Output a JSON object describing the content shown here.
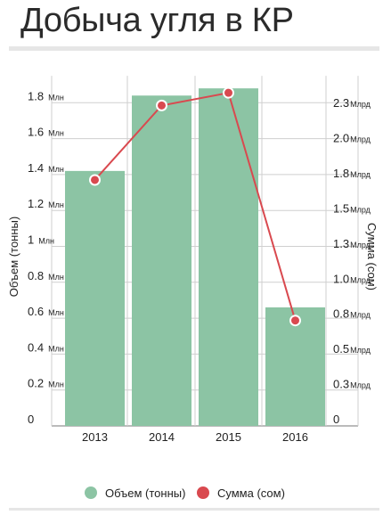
{
  "title": "Добыча угля в КР",
  "chart_data": {
    "type": "bar",
    "categories": [
      "2013",
      "2014",
      "2015",
      "2016"
    ],
    "series": [
      {
        "name": "Объем (тонны)",
        "type": "bar",
        "axis": "left",
        "color": "#8cc4a4",
        "values": [
          1.42,
          1.84,
          1.88,
          0.66
        ]
      },
      {
        "name": "Сумма (сом)",
        "type": "line",
        "axis": "right",
        "color": "#d9494f",
        "values": [
          1.75,
          2.28,
          2.37,
          0.75
        ]
      }
    ],
    "y_left": {
      "label": "Объем (тонны)",
      "unit": "Млн",
      "range": [
        0,
        2.0
      ],
      "ticks": [
        0,
        0.2,
        0.4,
        0.6,
        0.8,
        1,
        1.2,
        1.4,
        1.6,
        1.8
      ],
      "tick_labels": [
        "0",
        "0.2",
        "0.4",
        "0.6",
        "0.8",
        "1",
        "1.2",
        "1.4",
        "1.6",
        "1.8"
      ]
    },
    "y_right": {
      "label": "Сумма (сом)",
      "unit": "Млрд",
      "range": [
        0,
        2.555
      ],
      "ticks": [
        0,
        0.25,
        0.5,
        0.75,
        1.0,
        1.25,
        1.5,
        1.75,
        2.0,
        2.25
      ],
      "tick_labels": [
        "0",
        "0.3",
        "0.5",
        "0.8",
        "1.0",
        "1.3",
        "1.5",
        "1.8",
        "2.0",
        "2.3"
      ]
    },
    "grid": true,
    "legend": "bottom"
  }
}
